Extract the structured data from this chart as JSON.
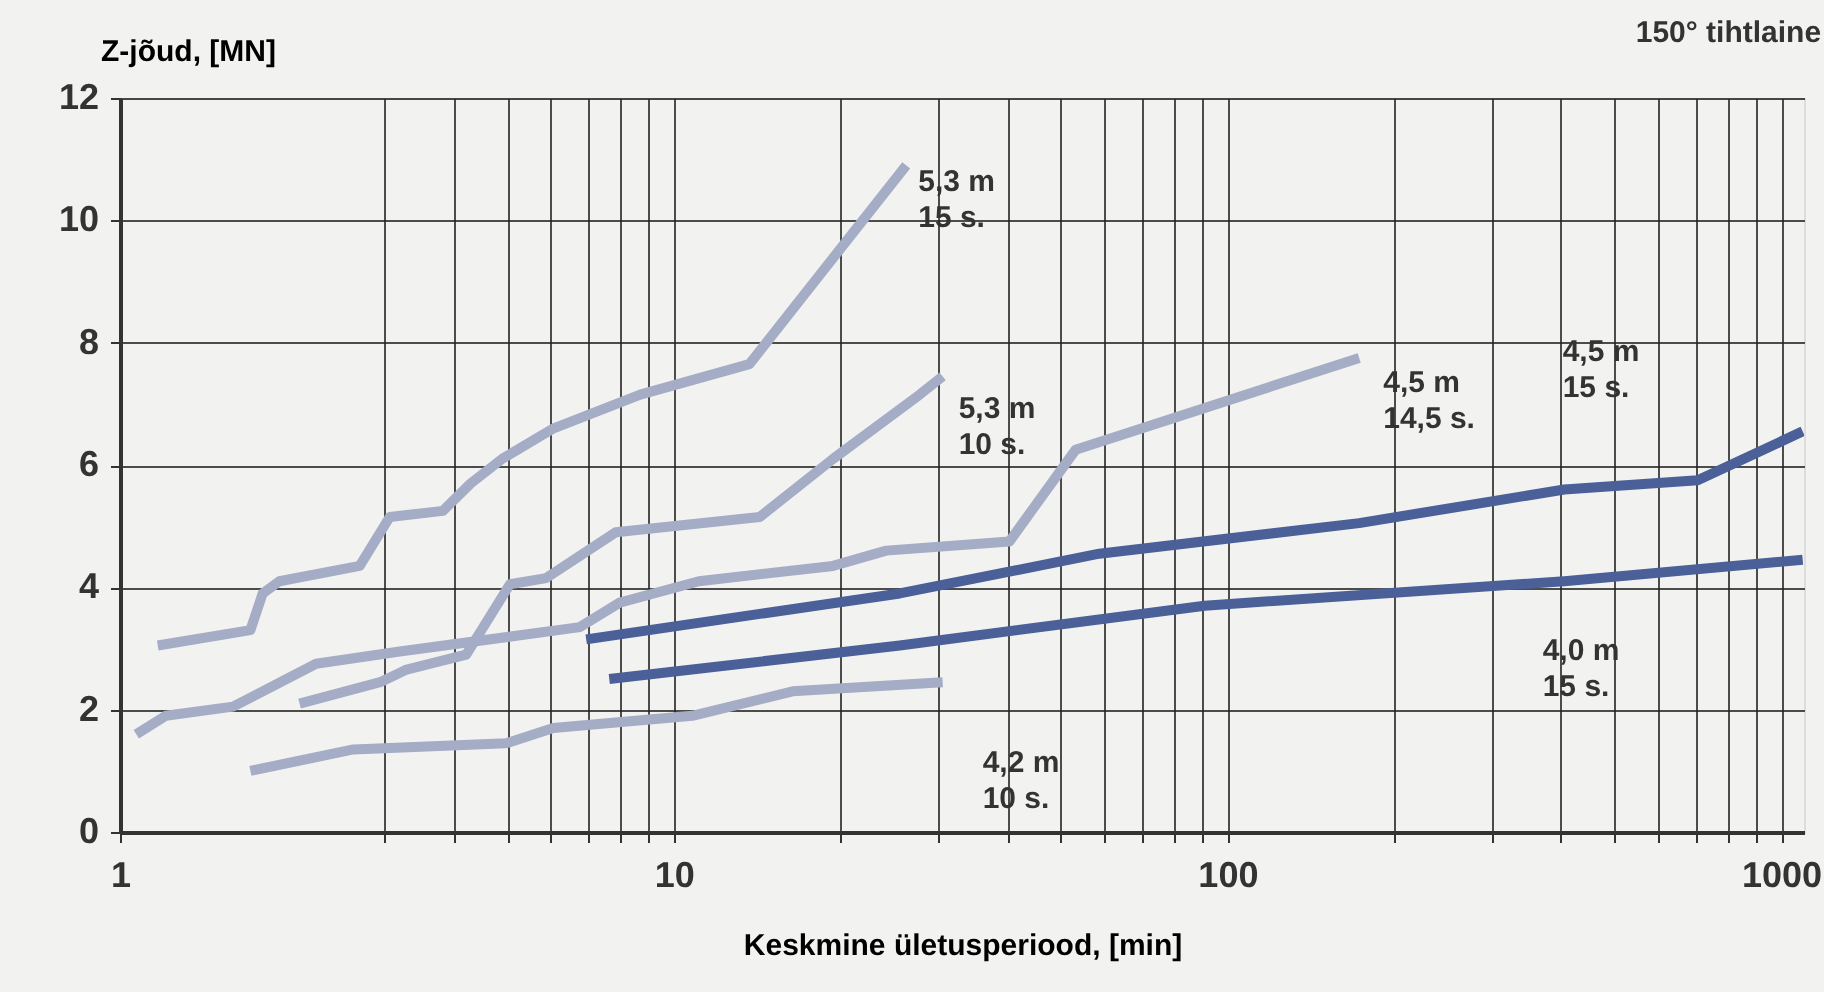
{
  "chart_data": {
    "type": "line",
    "title": "150° tihtlaine",
    "xlabel": "Keskmine ületusperiood, [min]",
    "ylabel": "Z-jõud, [MN]",
    "log": "x",
    "xlim": [
      1,
      1100
    ],
    "ylim": [
      0,
      12
    ],
    "xticks": [
      1,
      {
        "value": 3,
        "label": null
      },
      {
        "value": 4,
        "label": null
      },
      {
        "value": 5,
        "label": null
      },
      {
        "value": 6,
        "label": null
      },
      {
        "value": 7,
        "label": null
      },
      {
        "value": 8,
        "label": null
      },
      {
        "value": 9,
        "label": null
      },
      10,
      {
        "value": 20,
        "label": null
      },
      {
        "value": 30,
        "label": null
      },
      {
        "value": 40,
        "label": null
      },
      {
        "value": 50,
        "label": null
      },
      {
        "value": 60,
        "label": null
      },
      {
        "value": 70,
        "label": null
      },
      {
        "value": 80,
        "label": null
      },
      {
        "value": 90,
        "label": null
      },
      100,
      {
        "value": 200,
        "label": null
      },
      {
        "value": 300,
        "label": null
      },
      {
        "value": 400,
        "label": null
      },
      {
        "value": 500,
        "label": null
      },
      {
        "value": 600,
        "label": null
      },
      {
        "value": 700,
        "label": null
      },
      {
        "value": 800,
        "label": null
      },
      {
        "value": 900,
        "label": null
      },
      1000
    ],
    "yticks": [
      0,
      2,
      4,
      6,
      8,
      10,
      12
    ],
    "grid": true,
    "legend": false,
    "marker": "none",
    "line_style": "solid",
    "series": [
      {
        "name": "5,3 m\n15 s.",
        "color": "#a4acc6",
        "x": [
          1.17,
          1.72,
          1.81,
          1.94,
          2.71,
          3.07,
          3.83,
          4.3,
          4.9,
          6.07,
          8.7,
          13.7,
          26.3
        ],
        "values": [
          3.05,
          3.3,
          3.9,
          4.1,
          4.35,
          5.15,
          5.25,
          5.7,
          6.1,
          6.6,
          7.15,
          7.65,
          10.9
        ]
      },
      {
        "name": "5,3 m\n10 s.",
        "color": "#a4acc6",
        "x": [
          2.11,
          2.95,
          3.28,
          4.22,
          5.06,
          5.88,
          7.86,
          14.3,
          19.4,
          27.8,
          30.6
        ],
        "values": [
          2.1,
          2.45,
          2.65,
          2.9,
          4.05,
          4.15,
          4.9,
          5.15,
          6.1,
          7.15,
          7.45
        ]
      },
      {
        "name": "4,5 m\n14,5 s.",
        "color": "#a4acc6",
        "x": [
          1.07,
          1.21,
          1.6,
          2.26,
          3.2,
          6.77,
          7.99,
          11.1,
          19.4,
          24.2,
          40.4,
          53.2,
          173
        ],
        "values": [
          1.6,
          1.9,
          2.05,
          2.75,
          2.95,
          3.35,
          3.75,
          4.1,
          4.35,
          4.6,
          4.75,
          6.25,
          7.75
        ]
      },
      {
        "name": "4,2 m\n10 s.",
        "color": "#a4acc6",
        "x": [
          1.72,
          2.64,
          4.98,
          6.06,
          10.8,
          16.4,
          30.6
        ],
        "values": [
          1.0,
          1.35,
          1.45,
          1.7,
          1.9,
          2.3,
          2.45
        ]
      },
      {
        "name": "4,5 m\n15 s.",
        "color": "#4b5f98",
        "x": [
          6.95,
          25.6,
          58.7,
          173,
          406,
          707,
          1094
        ],
        "values": [
          3.15,
          3.9,
          4.55,
          5.05,
          5.6,
          5.75,
          6.55
        ]
      },
      {
        "name": "4,0 m\n15 s.",
        "color": "#4b5f98",
        "x": [
          7.65,
          25.6,
          91,
          406,
          1094
        ],
        "values": [
          2.5,
          3.05,
          3.7,
          4.1,
          4.45
        ]
      }
    ]
  }
}
